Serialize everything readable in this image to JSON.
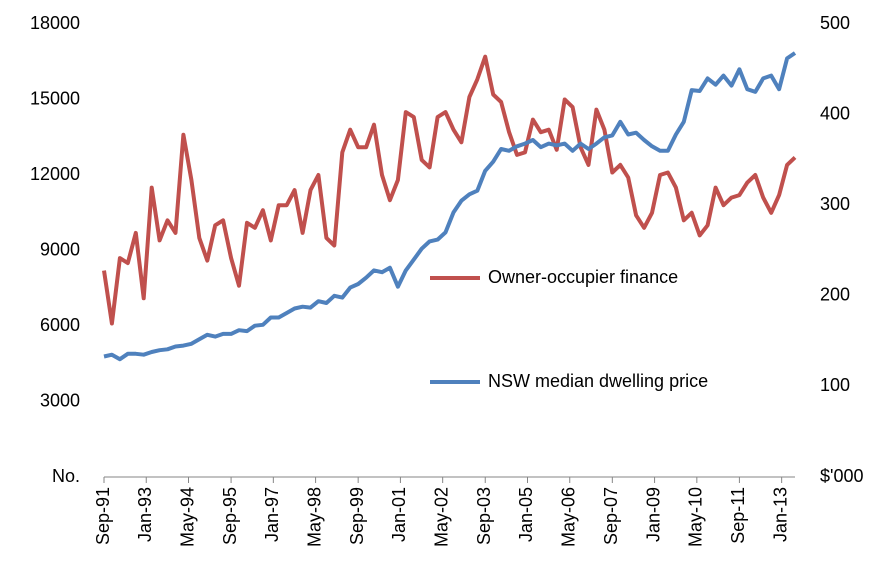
{
  "chart_data": {
    "type": "line",
    "x": [
      1991.67,
      1991.92,
      1992.17,
      1992.42,
      1992.67,
      1992.92,
      1993.17,
      1993.42,
      1993.67,
      1993.92,
      1994.17,
      1994.42,
      1994.67,
      1994.92,
      1995.17,
      1995.42,
      1995.67,
      1995.92,
      1996.17,
      1996.42,
      1996.67,
      1996.92,
      1997.17,
      1997.42,
      1997.67,
      1997.92,
      1998.17,
      1998.42,
      1998.67,
      1998.92,
      1999.17,
      1999.42,
      1999.67,
      1999.92,
      2000.17,
      2000.42,
      2000.67,
      2000.92,
      2001.17,
      2001.42,
      2001.67,
      2001.92,
      2002.17,
      2002.42,
      2002.67,
      2002.92,
      2003.17,
      2003.42,
      2003.67,
      2003.92,
      2004.17,
      2004.42,
      2004.67,
      2004.92,
      2005.17,
      2005.42,
      2005.67,
      2005.92,
      2006.17,
      2006.42,
      2006.67,
      2006.92,
      2007.17,
      2007.42,
      2007.67,
      2007.92,
      2008.17,
      2008.42,
      2008.67,
      2008.92,
      2009.17,
      2009.42,
      2009.67,
      2009.92,
      2010.17,
      2010.42,
      2010.67,
      2010.92,
      2011.17,
      2011.42,
      2011.67,
      2011.92,
      2012.17,
      2012.42,
      2012.67,
      2012.92,
      2013.17,
      2013.42
    ],
    "xlim": [
      1991.67,
      2013.42
    ],
    "xticks": [
      {
        "value": 1991.67,
        "label": "Sep-91"
      },
      {
        "value": 1993.0,
        "label": "Jan-93"
      },
      {
        "value": 1994.33,
        "label": "May-94"
      },
      {
        "value": 1995.67,
        "label": "Sep-95"
      },
      {
        "value": 1997.0,
        "label": "Jan-97"
      },
      {
        "value": 1998.33,
        "label": "May-98"
      },
      {
        "value": 1999.67,
        "label": "Sep-99"
      },
      {
        "value": 2001.0,
        "label": "Jan-01"
      },
      {
        "value": 2002.33,
        "label": "May-02"
      },
      {
        "value": 2003.67,
        "label": "Sep-03"
      },
      {
        "value": 2005.0,
        "label": "Jan-05"
      },
      {
        "value": 2006.33,
        "label": "May-06"
      },
      {
        "value": 2007.67,
        "label": "Sep-07"
      },
      {
        "value": 2009.0,
        "label": "Jan-09"
      },
      {
        "value": 2010.33,
        "label": "May-10"
      },
      {
        "value": 2011.67,
        "label": "Sep-11"
      },
      {
        "value": 2013.0,
        "label": "Jan-13"
      }
    ],
    "ylim": [
      0,
      18000
    ],
    "yticks": [
      {
        "value": 0,
        "label": "No."
      },
      3000,
      6000,
      9000,
      12000,
      15000,
      18000
    ],
    "y2lim": [
      0,
      500
    ],
    "y2ticks": [
      {
        "value": 0,
        "label": "$'000"
      },
      100,
      200,
      300,
      400,
      500
    ],
    "series": [
      {
        "name": "Owner-occupier finance",
        "color": "#c0504d",
        "values": [
          8200,
          6100,
          8700,
          8500,
          9700,
          7100,
          11500,
          9400,
          10200,
          9700,
          13600,
          11800,
          9500,
          8600,
          10000,
          10200,
          8700,
          7600,
          10100,
          9900,
          10600,
          9400,
          10800,
          10800,
          11400,
          9700,
          11400,
          12000,
          9500,
          9200,
          12900,
          13800,
          13100,
          13100,
          14000,
          12000,
          11000,
          11800,
          14500,
          14300,
          12600,
          12300,
          14300,
          14500,
          13800,
          13300,
          15100,
          15800,
          16700,
          15200,
          14900,
          13700,
          12800,
          12900,
          14200,
          13700,
          13800,
          13000,
          15000,
          14700,
          13100,
          12400,
          14600,
          13800,
          12100,
          12400,
          11900,
          10400,
          9900,
          10500,
          12000,
          12100,
          11500,
          10200,
          10500,
          9600,
          10000,
          11500,
          10800,
          11100,
          11200,
          11700,
          12000,
          11100,
          10500,
          11200,
          12400,
          12700
        ]
      },
      {
        "name": "NSW median dwelling price",
        "color": "#4f81bd",
        "axis": "y2",
        "values": [
          133,
          135,
          130,
          136,
          136,
          135,
          138,
          140,
          141,
          144,
          145,
          147,
          152,
          157,
          155,
          158,
          158,
          162,
          161,
          167,
          168,
          176,
          176,
          181,
          186,
          188,
          187,
          194,
          192,
          200,
          198,
          209,
          213,
          220,
          228,
          226,
          231,
          210,
          228,
          240,
          252,
          260,
          262,
          270,
          292,
          305,
          312,
          316,
          338,
          348,
          362,
          360,
          365,
          368,
          372,
          364,
          368,
          366,
          368,
          360,
          368,
          362,
          368,
          375,
          377,
          392,
          378,
          380,
          372,
          365,
          360,
          360,
          378,
          392,
          427,
          426,
          440,
          433,
          443,
          432,
          450,
          428,
          425,
          440,
          443,
          428,
          462,
          468
        ]
      }
    ]
  }
}
